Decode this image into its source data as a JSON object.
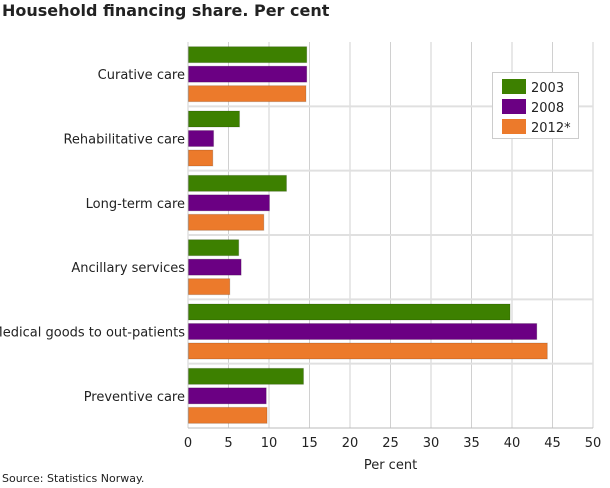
{
  "title": "Household financing share. Per cent",
  "source": "Source: Statistics Norway.",
  "chart_data": {
    "type": "bar",
    "orientation": "horizontal",
    "categories": [
      "Curative care",
      "Rehabilitative care",
      "Long-term care",
      "Ancillary services",
      "Medical goods to out-patients",
      "Preventive care"
    ],
    "series": [
      {
        "name": "2003",
        "color": "#3d8000",
        "values": [
          14.6,
          6.3,
          12.1,
          6.2,
          39.7,
          14.2
        ]
      },
      {
        "name": "2008",
        "color": "#6b0083",
        "values": [
          14.6,
          3.1,
          10.0,
          6.5,
          43.0,
          9.6
        ]
      },
      {
        "name": "2012*",
        "color": "#ec7a2b",
        "values": [
          14.5,
          3.0,
          9.3,
          5.1,
          44.3,
          9.7
        ]
      }
    ],
    "xlabel": "Per cent",
    "xlim": [
      0,
      50
    ],
    "xticks": [
      0,
      5,
      10,
      15,
      20,
      25,
      30,
      35,
      40,
      45,
      50
    ],
    "grid": true,
    "legend": "top-right"
  }
}
